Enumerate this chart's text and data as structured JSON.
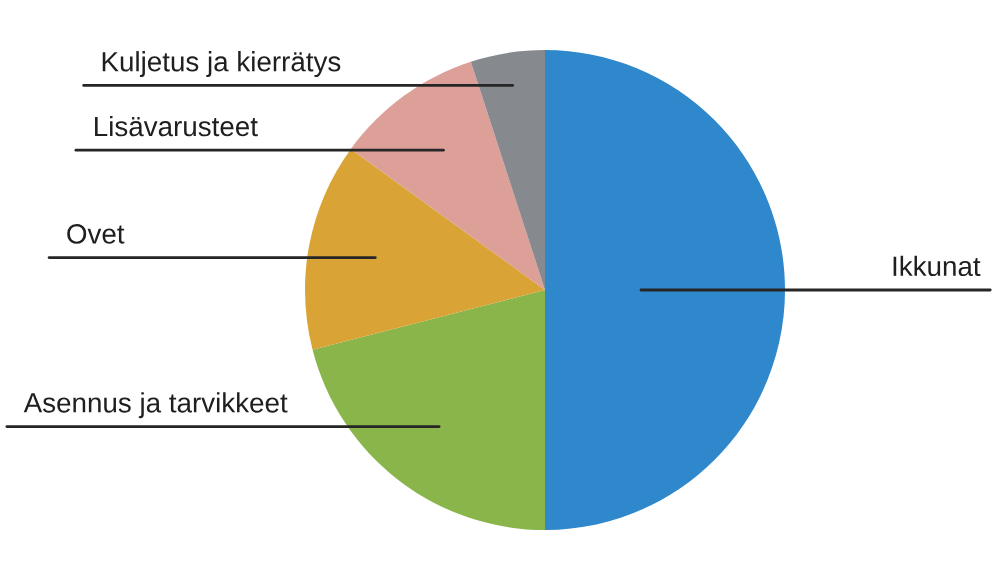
{
  "chart_data": {
    "type": "pie",
    "categories": [
      "Ikkunat",
      "Asennus ja tarvikkeet",
      "Ovet",
      "Lisävarusteet",
      "Kuljetus ja kierrätys"
    ],
    "values": [
      50,
      21,
      14,
      10,
      5
    ],
    "colors": [
      "#2f87cc",
      "#8ab54a",
      "#d9a336",
      "#dca098",
      "#868a8e"
    ]
  }
}
